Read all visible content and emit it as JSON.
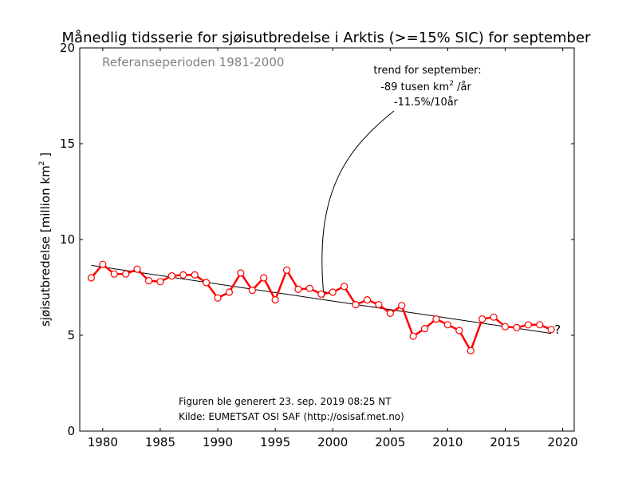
{
  "chart_data": {
    "type": "line",
    "title": "Månedlig tidsserie for sjøisutbredelse i Arktis (>=15% SIC) for september",
    "reference_label": "Referanseperioden 1981-2000",
    "ylabel_text": "sjøisutbredelse [million km",
    "ylabel_sup": "2",
    "ylabel_end": " ]",
    "xlim": [
      1978,
      2021
    ],
    "ylim": [
      0,
      20
    ],
    "x_ticks": [
      1980,
      1985,
      1990,
      1995,
      2000,
      2005,
      2010,
      2015,
      2020
    ],
    "y_ticks": [
      0,
      5,
      10,
      15,
      20
    ],
    "x_tick_labels": [
      "1980",
      "1985",
      "1990",
      "1995",
      "2000",
      "2005",
      "2010",
      "2015",
      "2020"
    ],
    "y_tick_labels": [
      "0",
      "5",
      "10",
      "15",
      "20"
    ],
    "grid": false,
    "series": [
      {
        "color": "#ff0000",
        "x": [
          1979,
          1980,
          1981,
          1982,
          1983,
          1984,
          1985,
          1986,
          1987,
          1988,
          1989,
          1990,
          1991,
          1992,
          1993,
          1994,
          1995,
          1996,
          1997,
          1998,
          1999,
          2000,
          2001,
          2002,
          2003,
          2004,
          2005,
          2006,
          2007,
          2008,
          2009,
          2010,
          2011,
          2012,
          2013,
          2014,
          2015,
          2016,
          2017,
          2018,
          2019
        ],
        "y": [
          8.0,
          8.7,
          8.2,
          8.2,
          8.45,
          7.85,
          7.8,
          8.1,
          8.15,
          8.15,
          7.75,
          6.95,
          7.25,
          8.25,
          7.35,
          8.0,
          6.85,
          8.4,
          7.4,
          7.45,
          7.15,
          7.25,
          7.55,
          6.6,
          6.85,
          6.6,
          6.15,
          6.55,
          4.95,
          5.35,
          5.85,
          5.55,
          5.25,
          4.2,
          5.85,
          5.95,
          5.45,
          5.4,
          5.55,
          5.55,
          5.3
        ]
      }
    ],
    "trend_line": {
      "color": "#000000",
      "x": [
        1979,
        2019
      ],
      "y": [
        8.65,
        5.1
      ]
    },
    "annotations": {
      "trend_title": "trend for september:",
      "trend_rate_a": "-89 tusen km",
      "trend_rate_sup": "2",
      "trend_rate_b": " /år",
      "trend_percent": "-11.5%/10år",
      "arrow_target_x": 1999.2,
      "arrow_target_y": 6.95,
      "question_mark": "?",
      "generated": "Figuren ble generert 23. sep. 2019 08:25 NT",
      "source": "Kilde: EUMETSAT OSI SAF (http://osisaf.met.no)"
    }
  }
}
